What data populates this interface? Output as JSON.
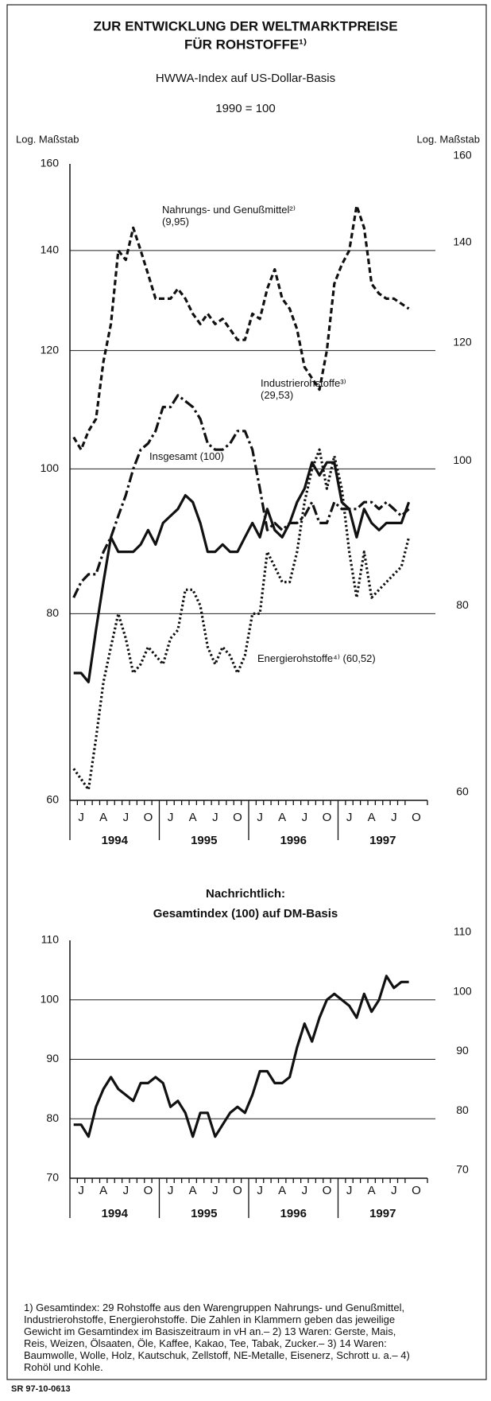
{
  "chart_data": [
    {
      "type": "line",
      "title": [
        "ZUR ENTWICKLUNG DER WELTMARKTPREISE",
        "FÜR ROHSTOFFE¹⁾"
      ],
      "subtitle": "HWWA-Index auf US-Dollar-Basis",
      "base": "1990 = 100",
      "y_axis_label": "Log. Maßstab",
      "y2_axis_label": "Log. Maßstab",
      "categories": [
        "J",
        null,
        null,
        "A",
        null,
        null,
        "J",
        null,
        null,
        "O",
        null,
        null,
        "J",
        null,
        null,
        "A",
        null,
        null,
        "J",
        null,
        null,
        "O",
        null,
        null,
        "J",
        null,
        null,
        "A",
        null,
        null,
        "J",
        null,
        null,
        "O",
        null,
        null,
        "J",
        null,
        null,
        "A",
        null,
        null,
        "J",
        null,
        null,
        "O"
      ],
      "years": [
        "1994",
        "1995",
        "1996",
        "1997"
      ],
      "log_scale": true,
      "grid": true,
      "ylim": [
        60,
        160
      ],
      "yticks": [
        60,
        80,
        100,
        120,
        140,
        160
      ],
      "y2lim": [
        60,
        160
      ],
      "y2ticks": [
        60,
        80,
        100,
        120,
        140,
        160
      ],
      "series": [
        {
          "name": "Nahrungs- und Genußmittel²⁾ (9,95)",
          "color": "#111111",
          "dash": "dashed",
          "values": [
            105,
            103,
            106,
            108,
            118,
            125,
            140,
            138,
            145,
            140,
            135,
            130,
            130,
            130,
            132,
            130,
            127,
            125,
            127,
            125,
            126,
            124,
            122,
            122,
            127,
            126,
            132,
            136,
            130,
            128,
            124,
            117,
            115,
            113,
            120,
            133,
            137,
            140,
            150,
            145,
            133,
            131,
            130,
            130,
            129,
            128
          ]
        },
        {
          "name": "Industrierohstoffe³⁾ (29,53)",
          "color": "#111111",
          "dash": "dashdot",
          "values": [
            82,
            84,
            85,
            85,
            88,
            90,
            93,
            96,
            100,
            103,
            104,
            106,
            110,
            110,
            112,
            111,
            110,
            108,
            104,
            103,
            103,
            104,
            106,
            106,
            103,
            97,
            91,
            92,
            91,
            92,
            92,
            93,
            95,
            92,
            92,
            95,
            94,
            94,
            94,
            95,
            95,
            94,
            95,
            94,
            93,
            94
          ]
        },
        {
          "name": "Insgesamt (100)",
          "color": "#111111",
          "dash": "solid",
          "values": [
            73,
            73,
            72,
            78,
            84,
            90,
            88,
            88,
            88,
            89,
            91,
            89,
            92,
            93,
            94,
            96,
            95,
            92,
            88,
            88,
            89,
            88,
            88,
            90,
            92,
            90,
            94,
            91,
            90,
            92,
            95,
            97,
            101,
            99,
            101,
            101,
            95,
            94,
            90,
            94,
            92,
            91,
            92,
            92,
            92,
            95
          ]
        },
        {
          "name": "Energierohstoffe⁴⁾ (60,52)",
          "color": "#111111",
          "dash": "dotted",
          "values": [
            63,
            62,
            61,
            66,
            72,
            76,
            80,
            77,
            73,
            74,
            76,
            75,
            74,
            77,
            78,
            83,
            83,
            81,
            76,
            74,
            76,
            75,
            73,
            75,
            80,
            80,
            88,
            86,
            84,
            84,
            88,
            95,
            100,
            103,
            97,
            102,
            97,
            88,
            82,
            88,
            82,
            83,
            84,
            85,
            86,
            90
          ]
        }
      ]
    },
    {
      "type": "line",
      "title": [
        "Nachrichtlich:",
        "Gesamtindex (100) auf DM-Basis"
      ],
      "categories": [
        "J",
        null,
        null,
        "A",
        null,
        null,
        "J",
        null,
        null,
        "O",
        null,
        null,
        "J",
        null,
        null,
        "A",
        null,
        null,
        "J",
        null,
        null,
        "O",
        null,
        null,
        "J",
        null,
        null,
        "A",
        null,
        null,
        "J",
        null,
        null,
        "O",
        null,
        null,
        "J",
        null,
        null,
        "A",
        null,
        null,
        "J",
        null,
        null,
        "O"
      ],
      "years": [
        "1994",
        "1995",
        "1996",
        "1997"
      ],
      "log_scale": false,
      "grid": true,
      "ylim": [
        70,
        110
      ],
      "yticks": [
        70,
        80,
        90,
        100,
        110
      ],
      "y2lim": [
        70,
        110
      ],
      "y2ticks": [
        70,
        80,
        90,
        100,
        110
      ],
      "series": [
        {
          "color": "#111111",
          "dash": "solid",
          "values": [
            79,
            79,
            77,
            82,
            85,
            87,
            85,
            84,
            83,
            86,
            86,
            87,
            86,
            82,
            83,
            81,
            77,
            81,
            81,
            77,
            79,
            81,
            82,
            81,
            84,
            88,
            88,
            86,
            86,
            87,
            92,
            96,
            93,
            97,
            100,
            101,
            100,
            99,
            97,
            101,
            98,
            100,
            104,
            102,
            103,
            103
          ]
        }
      ]
    }
  ],
  "footnotes": "1) Gesamtindex: 29 Rohstoffe aus den Warengruppen Nahrungs- und Genußmittel, Industrierohstoffe, Energierohstoffe. Die Zahlen in Klammern geben das jeweilige Gewicht im Gesamtindex im Basiszeitraum in vH an.– 2) 13 Waren: Gerste, Mais, Reis, Weizen, Ölsaaten, Öle, Kaffee, Kakao, Tee, Tabak, Zucker.– 3) 14 Waren: Baumwolle, Wolle, Holz, Kautschuk, Zellstoff, NE-Metalle, Eisenerz, Schrott u. a.– 4) Rohöl und Kohle.",
  "code": "SR 97-10-0613"
}
